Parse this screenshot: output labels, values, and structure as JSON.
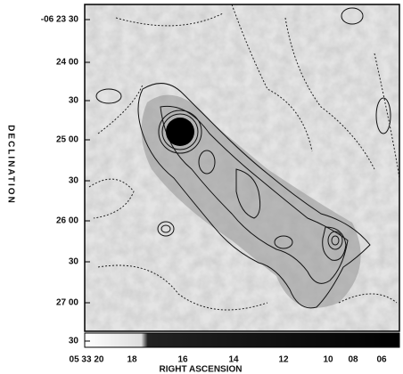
{
  "chart_data": {
    "type": "contour",
    "y_axis_title": "DECLINATION",
    "x_axis_title": "RIGHT ASCENSION",
    "y_tick_labels": [
      "-06 23 30",
      "24 00",
      "30",
      "25 00",
      "30",
      "26 00",
      "30",
      "27 00",
      "30"
    ],
    "x_tick_labels": [
      "05 33 20",
      "18",
      "16",
      "14",
      "12",
      "10",
      "08",
      "06"
    ]
  }
}
